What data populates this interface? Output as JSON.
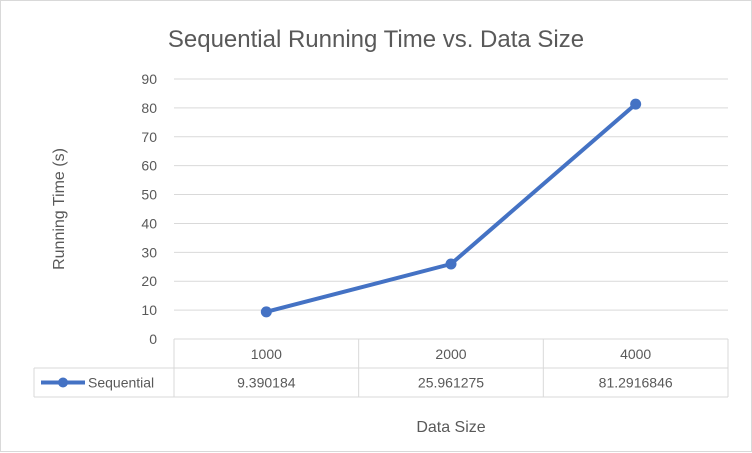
{
  "chart_data": {
    "type": "line",
    "title": "Sequential Running Time vs. Data Size",
    "xlabel": "Data Size",
    "ylabel": "Running Time (s)",
    "categories": [
      "1000",
      "2000",
      "4000"
    ],
    "ylim": [
      0,
      90
    ],
    "yticks": [
      0,
      10,
      20,
      30,
      40,
      50,
      60,
      70,
      80,
      90
    ],
    "grid": true,
    "legend": "data-table-left",
    "series": [
      {
        "name": "Sequential",
        "values": [
          9.390184,
          25.961275,
          81.2916846
        ],
        "value_labels": [
          "9.390184",
          "25.961275",
          "81.2916846"
        ],
        "color": "#4472c4"
      }
    ]
  }
}
